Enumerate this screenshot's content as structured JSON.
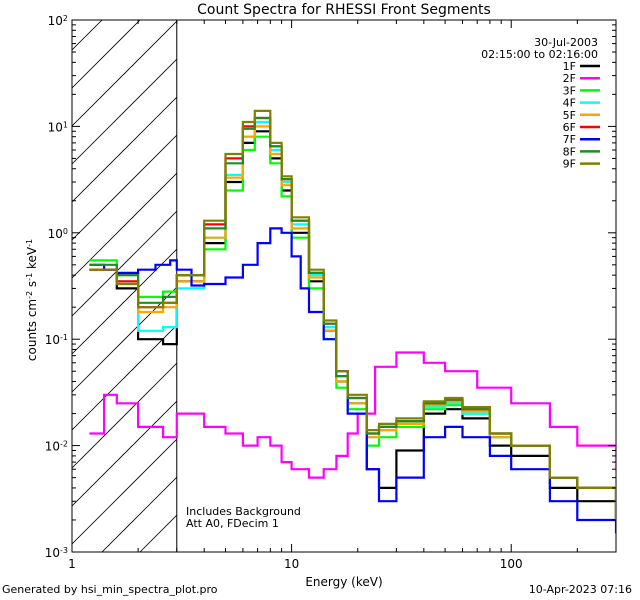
{
  "chart_data": {
    "type": "line",
    "title": "Count Spectra for RHESSI Front Segments",
    "xlabel": "Energy (keV)",
    "ylabel": "counts cm^-2 s^-1 keV^-1",
    "x_scale": "log",
    "y_scale": "log",
    "xlim": [
      1,
      300
    ],
    "ylim": [
      0.001,
      100
    ],
    "x_tick_labels": [
      "1",
      "10",
      "100"
    ],
    "y_tick_labels": [
      "10^-3",
      "10^-2",
      "10^-1",
      "10^0",
      "10^1",
      "10^2"
    ],
    "date": "30-Jul-2003",
    "time_range": "02:15:00 to 02:16:00",
    "annotation_line1": "Includes Background",
    "annotation_line2": "Att A0, FDecim 1",
    "hatched_region_max_energy": 3,
    "series": [
      {
        "name": "1F",
        "color": "#000000",
        "x": [
          1.2,
          1.6,
          2.0,
          2.6,
          3.0,
          4.0,
          5.0,
          6.0,
          6.8,
          8.0,
          9.0,
          10.0,
          12.0,
          14.0,
          16.0,
          18.0,
          22.0,
          25.0,
          30.0,
          40.0,
          50.0,
          60.0,
          80.0,
          100.0,
          150.0,
          200.0,
          300.0
        ],
        "y": [
          0.45,
          0.3,
          0.1,
          0.09,
          0.35,
          0.8,
          3.0,
          7.0,
          9.0,
          5.0,
          2.5,
          1.0,
          0.35,
          0.12,
          0.04,
          0.025,
          0.006,
          0.004,
          0.009,
          0.02,
          0.022,
          0.018,
          0.01,
          0.008,
          0.004,
          0.003,
          0.002
        ]
      },
      {
        "name": "2F",
        "color": "#ff00ff",
        "x": [
          1.2,
          1.4,
          1.6,
          2.0,
          2.6,
          3.0,
          4.0,
          5.0,
          6.0,
          7.0,
          8.0,
          9.0,
          10.0,
          12.0,
          14.0,
          16.0,
          18.0,
          20.0,
          24.0,
          30.0,
          40.0,
          50.0,
          70.0,
          100.0,
          150.0,
          200.0,
          300.0
        ],
        "y": [
          0.013,
          0.03,
          0.025,
          0.015,
          0.012,
          0.02,
          0.015,
          0.013,
          0.01,
          0.012,
          0.01,
          0.007,
          0.006,
          0.005,
          0.006,
          0.008,
          0.013,
          0.02,
          0.055,
          0.075,
          0.06,
          0.05,
          0.035,
          0.025,
          0.015,
          0.01,
          0.006
        ]
      },
      {
        "name": "3F",
        "color": "#00ff00",
        "x": [
          1.2,
          1.6,
          2.0,
          2.6,
          3.0,
          4.0,
          5.0,
          6.0,
          6.8,
          8.0,
          9.0,
          10.0,
          12.0,
          14.0,
          16.0,
          18.0,
          22.0,
          25.0,
          30.0,
          40.0,
          50.0,
          60.0,
          80.0,
          100.0,
          150.0,
          200.0,
          300.0
        ],
        "y": [
          0.55,
          0.4,
          0.25,
          0.28,
          0.4,
          0.7,
          2.5,
          6.0,
          8.0,
          4.5,
          2.2,
          0.9,
          0.3,
          0.1,
          0.035,
          0.022,
          0.01,
          0.012,
          0.015,
          0.022,
          0.024,
          0.02,
          0.012,
          0.01,
          0.005,
          0.004,
          0.002
        ]
      },
      {
        "name": "4F",
        "color": "#00ffff",
        "x": [
          1.2,
          1.6,
          2.0,
          2.6,
          3.0,
          4.0,
          5.0,
          6.0,
          6.8,
          8.0,
          9.0,
          10.0,
          12.0,
          14.0,
          16.0,
          18.0,
          22.0,
          25.0,
          30.0,
          40.0,
          50.0,
          60.0,
          80.0,
          100.0,
          150.0,
          200.0,
          300.0
        ],
        "y": [
          0.45,
          0.35,
          0.12,
          0.13,
          0.3,
          0.9,
          3.5,
          8.0,
          11.0,
          6.0,
          3.0,
          1.2,
          0.4,
          0.13,
          0.04,
          0.025,
          0.012,
          0.014,
          0.016,
          0.023,
          0.025,
          0.02,
          0.012,
          0.01,
          0.005,
          0.004,
          0.002
        ]
      },
      {
        "name": "5F",
        "color": "#ffa500",
        "x": [
          1.2,
          1.6,
          2.0,
          2.6,
          3.0,
          4.0,
          5.0,
          6.0,
          6.8,
          8.0,
          9.0,
          10.0,
          12.0,
          14.0,
          16.0,
          18.0,
          22.0,
          25.0,
          30.0,
          40.0,
          50.0,
          60.0,
          80.0,
          100.0,
          150.0,
          200.0,
          300.0
        ],
        "y": [
          0.45,
          0.33,
          0.18,
          0.2,
          0.35,
          0.9,
          3.3,
          8.0,
          10.0,
          5.5,
          2.8,
          1.1,
          0.38,
          0.12,
          0.04,
          0.025,
          0.012,
          0.014,
          0.016,
          0.024,
          0.026,
          0.021,
          0.012,
          0.01,
          0.005,
          0.004,
          0.002
        ]
      },
      {
        "name": "6F",
        "color": "#ff0000",
        "x": [
          1.2,
          1.6,
          2.0,
          2.6,
          3.0,
          4.0,
          5.0,
          6.0,
          6.8,
          8.0,
          9.0,
          10.0,
          12.0,
          14.0,
          16.0,
          18.0,
          22.0,
          25.0,
          30.0,
          40.0,
          50.0,
          60.0,
          80.0,
          100.0,
          150.0,
          200.0,
          300.0
        ],
        "y": [
          0.45,
          0.35,
          0.2,
          0.22,
          0.4,
          1.2,
          5.0,
          10.0,
          12.0,
          6.5,
          3.2,
          1.3,
          0.42,
          0.14,
          0.045,
          0.028,
          0.013,
          0.015,
          0.017,
          0.025,
          0.027,
          0.022,
          0.013,
          0.01,
          0.005,
          0.004,
          0.002
        ]
      },
      {
        "name": "7F",
        "color": "#0000ff",
        "x": [
          1.2,
          1.4,
          1.6,
          2.0,
          2.4,
          2.8,
          3.0,
          3.5,
          4.0,
          5.0,
          6.0,
          7.0,
          8.0,
          9.0,
          10.0,
          11.0,
          12.0,
          14.0,
          16.0,
          18.0,
          22.0,
          25.0,
          30.0,
          40.0,
          50.0,
          60.0,
          80.0,
          100.0,
          150.0,
          200.0,
          300.0
        ],
        "y": [
          0.5,
          0.45,
          0.42,
          0.45,
          0.5,
          0.55,
          0.45,
          0.32,
          0.33,
          0.38,
          0.5,
          0.8,
          1.1,
          1.0,
          0.6,
          0.3,
          0.18,
          0.1,
          0.05,
          0.02,
          0.006,
          0.003,
          0.005,
          0.012,
          0.015,
          0.012,
          0.008,
          0.006,
          0.003,
          0.002,
          0.0015
        ]
      },
      {
        "name": "8F",
        "color": "#228b22",
        "x": [
          1.2,
          1.6,
          2.0,
          2.6,
          3.0,
          4.0,
          5.0,
          6.0,
          6.8,
          8.0,
          9.0,
          10.0,
          12.0,
          14.0,
          16.0,
          18.0,
          22.0,
          25.0,
          30.0,
          40.0,
          50.0,
          60.0,
          80.0,
          100.0,
          150.0,
          200.0,
          300.0
        ],
        "y": [
          0.5,
          0.4,
          0.22,
          0.25,
          0.4,
          1.1,
          4.5,
          9.5,
          12.0,
          6.5,
          3.2,
          1.3,
          0.42,
          0.14,
          0.045,
          0.028,
          0.013,
          0.015,
          0.017,
          0.025,
          0.027,
          0.022,
          0.013,
          0.01,
          0.005,
          0.004,
          0.002
        ]
      },
      {
        "name": "9F",
        "color": "#808000",
        "x": [
          1.2,
          1.6,
          2.0,
          2.6,
          3.0,
          4.0,
          5.0,
          6.0,
          6.8,
          8.0,
          9.0,
          10.0,
          12.0,
          14.0,
          16.0,
          18.0,
          22.0,
          25.0,
          30.0,
          40.0,
          50.0,
          60.0,
          80.0,
          100.0,
          150.0,
          200.0,
          300.0
        ],
        "y": [
          0.45,
          0.33,
          0.2,
          0.22,
          0.4,
          1.3,
          5.5,
          11.0,
          14.0,
          7.0,
          3.4,
          1.4,
          0.45,
          0.15,
          0.05,
          0.03,
          0.014,
          0.016,
          0.018,
          0.026,
          0.028,
          0.023,
          0.013,
          0.01,
          0.005,
          0.004,
          0.002
        ]
      }
    ]
  },
  "footer": {
    "generated": "Generated by hsi_min_spectra_plot.pro",
    "timestamp": "10-Apr-2023 07:16"
  }
}
